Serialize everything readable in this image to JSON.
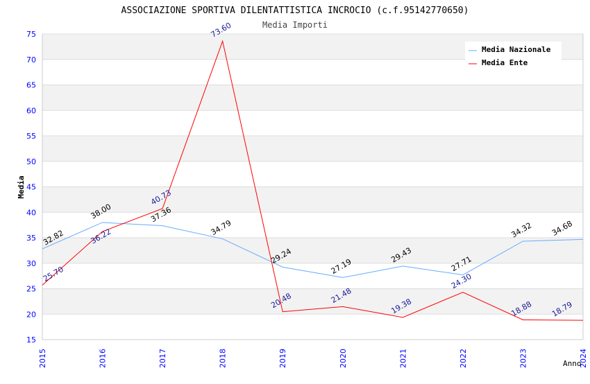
{
  "chart_data": {
    "type": "line",
    "title": "ASSOCIAZIONE SPORTIVA DILENTATTISTICA INCROCIO (c.f.95142770650)",
    "subtitle": "Media Importi",
    "xlabel": "Anno",
    "ylabel": "Media",
    "x": [
      "2015",
      "2016",
      "2017",
      "2018",
      "2019",
      "2020",
      "2021",
      "2022",
      "2023",
      "2024"
    ],
    "ylim": [
      15,
      75
    ],
    "yticks": [
      "15",
      "20",
      "25",
      "30",
      "35",
      "40",
      "45",
      "50",
      "55",
      "60",
      "65",
      "70",
      "75"
    ],
    "grid": true,
    "legend_position": "top-right",
    "series": [
      {
        "name": "Media Nazionale",
        "color": "#66aaff",
        "label_color": "#000000",
        "values": [
          32.82,
          38.0,
          37.36,
          34.79,
          29.24,
          27.19,
          29.43,
          27.71,
          34.32,
          34.68
        ],
        "labels": [
          "32.82",
          "38.00",
          "37.36",
          "34.79",
          "29.24",
          "27.19",
          "29.43",
          "27.71",
          "34.32",
          "34.68"
        ]
      },
      {
        "name": "Media Ente",
        "color": "#ff0000",
        "label_color": "#1a1a99",
        "values": [
          25.7,
          36.22,
          40.73,
          73.6,
          20.48,
          21.48,
          19.38,
          24.3,
          18.88,
          18.79
        ],
        "labels": [
          "25.70",
          "36.22",
          "40.73",
          "73.60",
          "20.48",
          "21.48",
          "19.38",
          "24.30",
          "18.88",
          "18.79"
        ]
      }
    ]
  }
}
